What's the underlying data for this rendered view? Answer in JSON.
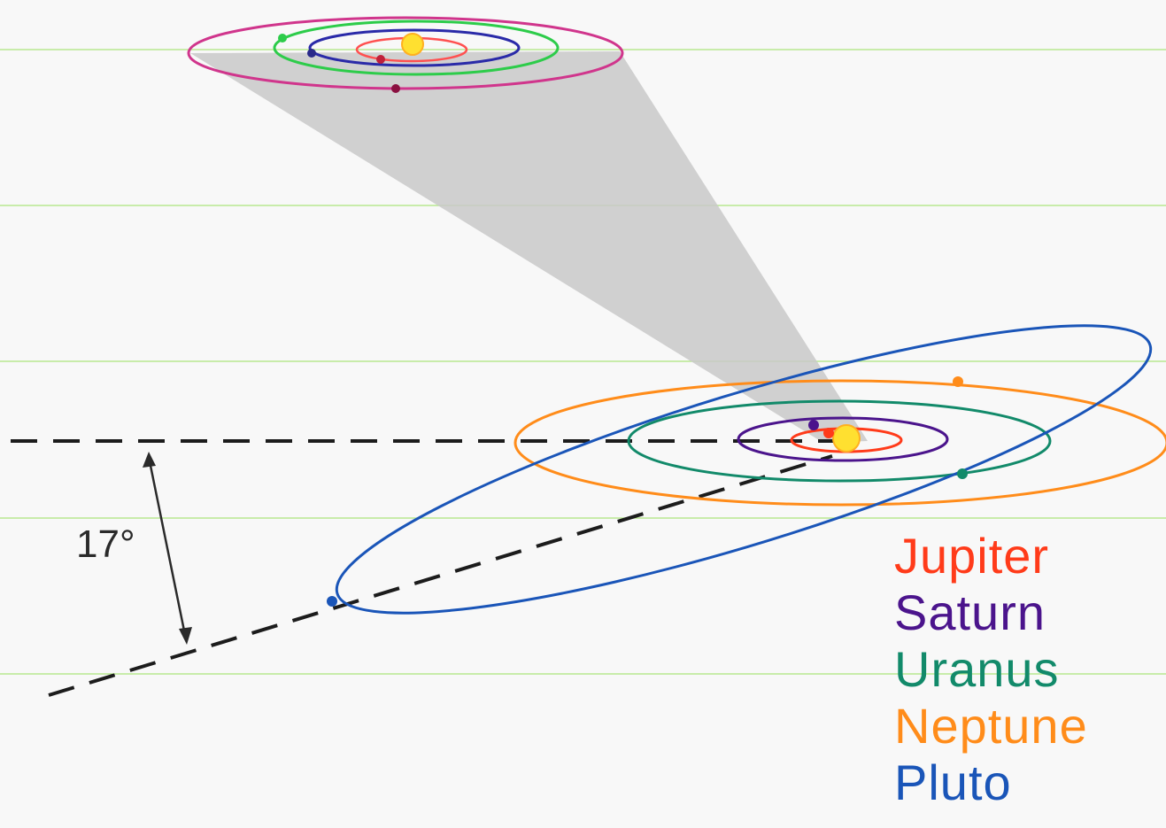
{
  "angle_label": "17°",
  "legend": [
    {
      "label": "Jupiter",
      "color": "#ff3b1a"
    },
    {
      "label": "Saturn",
      "color": "#4b148c"
    },
    {
      "label": "Uranus",
      "color": "#128a6a"
    },
    {
      "label": "Neptune",
      "color": "#ff8c1a"
    },
    {
      "label": "Pluto",
      "color": "#1a55b8"
    }
  ],
  "colors": {
    "background": "#f8f8f8",
    "grid_line": "#b8e890",
    "dashed_line": "#1c1c1c",
    "sun": "#ffe030",
    "cone": "#c9c9c9",
    "inset_outer_orbit": "#d0358c",
    "inset_green_orbit": "#2dcc4a",
    "inset_blue_orbit": "#2a2aa8",
    "inset_red_orbit": "#ff5050"
  }
}
